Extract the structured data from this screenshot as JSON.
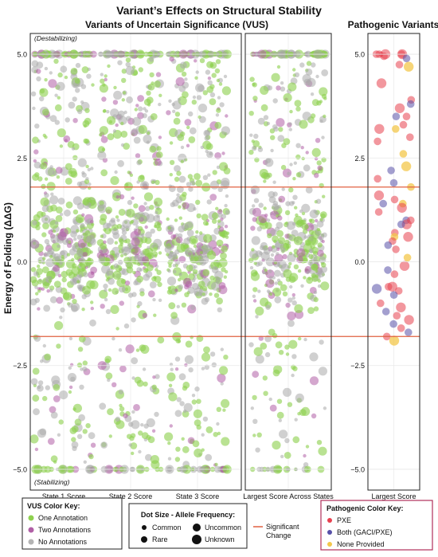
{
  "chart_data": {
    "type": "scatter",
    "title": "Variant’s Effects on Structural Stability",
    "ylabel": "Energy of Folding (ΔΔG)",
    "ylim": [
      -5.5,
      5.5
    ],
    "yticks": [
      {
        "value": 5.0,
        "label": "5.0"
      },
      {
        "value": 2.5,
        "label": "2.5"
      },
      {
        "value": 0.0,
        "label": "0.0"
      },
      {
        "value": -2.5,
        "label": "−2.5"
      },
      {
        "value": -5.0,
        "label": "−5.0"
      }
    ],
    "significance_lines": [
      1.8,
      -1.8
    ],
    "annotations": {
      "top": "(Destabilizing)",
      "bottom": "(Stabilizing)"
    },
    "vus_panel": {
      "title": "Variants of Uncertain Significance (VUS)",
      "categories": [
        "State 1 Score",
        "State 2 Score",
        "State 3 Score"
      ],
      "combined_category": "Largest Score Across States"
    },
    "pathogenic_panel": {
      "title": "Pathogenic Variants",
      "category": "Largest Score",
      "points": [
        {
          "y": 5.0,
          "g": "PXE",
          "s": 2
        },
        {
          "y": 5.0,
          "g": "PXE",
          "s": 3
        },
        {
          "y": 5.0,
          "g": "PXE",
          "s": 2
        },
        {
          "y": 5.0,
          "g": "PXE",
          "s": 1
        },
        {
          "y": 5.0,
          "g": "PXE",
          "s": 2
        },
        {
          "y": 5.0,
          "g": "PXE",
          "s": 3
        },
        {
          "y": 4.9,
          "g": "Both",
          "s": 2
        },
        {
          "y": 4.95,
          "g": "PXE",
          "s": 2
        },
        {
          "y": 4.7,
          "g": "None",
          "s": 3
        },
        {
          "y": 4.75,
          "g": "PXE",
          "s": 2
        },
        {
          "y": 4.3,
          "g": "PXE",
          "s": 3
        },
        {
          "y": 3.9,
          "g": "PXE",
          "s": 2
        },
        {
          "y": 3.8,
          "g": "Both",
          "s": 2
        },
        {
          "y": 3.7,
          "g": "PXE",
          "s": 3
        },
        {
          "y": 3.5,
          "g": "PXE",
          "s": 2
        },
        {
          "y": 3.5,
          "g": "Both",
          "s": 2
        },
        {
          "y": 3.3,
          "g": "PXE",
          "s": 2
        },
        {
          "y": 3.2,
          "g": "None",
          "s": 2
        },
        {
          "y": 3.2,
          "g": "PXE",
          "s": 3
        },
        {
          "y": 3.0,
          "g": "PXE",
          "s": 2
        },
        {
          "y": 2.9,
          "g": "PXE",
          "s": 2
        },
        {
          "y": 2.6,
          "g": "None",
          "s": 2
        },
        {
          "y": 2.3,
          "g": "None",
          "s": 3
        },
        {
          "y": 2.2,
          "g": "Both",
          "s": 2
        },
        {
          "y": 2.0,
          "g": "PXE",
          "s": 2
        },
        {
          "y": 1.9,
          "g": "Both",
          "s": 2
        },
        {
          "y": 1.8,
          "g": "None",
          "s": 2
        },
        {
          "y": 1.6,
          "g": "PXE",
          "s": 3
        },
        {
          "y": 1.5,
          "g": "PXE",
          "s": 2
        },
        {
          "y": 1.4,
          "g": "None",
          "s": 2
        },
        {
          "y": 1.4,
          "g": "Both",
          "s": 2
        },
        {
          "y": 1.3,
          "g": "PXE",
          "s": 3
        },
        {
          "y": 1.2,
          "g": "PXE",
          "s": 2
        },
        {
          "y": 1.0,
          "g": "Both",
          "s": 2
        },
        {
          "y": 1.0,
          "g": "PXE",
          "s": 2
        },
        {
          "y": 0.9,
          "g": "PXE",
          "s": 3
        },
        {
          "y": 0.9,
          "g": "Both",
          "s": 2
        },
        {
          "y": 0.7,
          "g": "PXE",
          "s": 2
        },
        {
          "y": 0.6,
          "g": "PXE",
          "s": 3
        },
        {
          "y": 0.6,
          "g": "None",
          "s": 2
        },
        {
          "y": 0.5,
          "g": "PXE",
          "s": 2
        },
        {
          "y": 0.4,
          "g": "Both",
          "s": 2
        },
        {
          "y": 0.3,
          "g": "PXE",
          "s": 2
        },
        {
          "y": 0.1,
          "g": "None",
          "s": 2
        },
        {
          "y": -0.1,
          "g": "PXE",
          "s": 3
        },
        {
          "y": -0.2,
          "g": "Both",
          "s": 2
        },
        {
          "y": -0.3,
          "g": "PXE",
          "s": 2
        },
        {
          "y": -0.6,
          "g": "PXE",
          "s": 3
        },
        {
          "y": -0.6,
          "g": "PXE",
          "s": 2
        },
        {
          "y": -0.65,
          "g": "Both",
          "s": 3
        },
        {
          "y": -0.7,
          "g": "PXE",
          "s": 2
        },
        {
          "y": -0.8,
          "g": "Both",
          "s": 2
        },
        {
          "y": -1.0,
          "g": "PXE",
          "s": 2
        },
        {
          "y": -1.1,
          "g": "PXE",
          "s": 3
        },
        {
          "y": -1.2,
          "g": "Both",
          "s": 2
        },
        {
          "y": -1.3,
          "g": "PXE",
          "s": 2
        },
        {
          "y": -1.4,
          "g": "PXE",
          "s": 3
        },
        {
          "y": -1.5,
          "g": "Both",
          "s": 2
        },
        {
          "y": -1.6,
          "g": "PXE",
          "s": 2
        },
        {
          "y": -1.8,
          "g": "PXE",
          "s": 2
        },
        {
          "y": -1.9,
          "g": "None",
          "s": 3
        },
        {
          "y": -1.7,
          "g": "Both",
          "s": 2
        }
      ]
    },
    "vus_color_key": {
      "title": "VUS Color Key:",
      "items": [
        {
          "label": "One Annotation",
          "color": "#8ed14f"
        },
        {
          "label": "Two Annotations",
          "color": "#b05fa6"
        },
        {
          "label": "No Annotations",
          "color": "#b4b4b4"
        }
      ]
    },
    "size_key": {
      "title": "Dot Size - Allele Frequency:",
      "items": [
        {
          "label": "Common",
          "size": 1
        },
        {
          "label": "Uncommon",
          "size": 3
        },
        {
          "label": "Rare",
          "size": 2
        },
        {
          "label": "Unknown",
          "size": 4
        }
      ]
    },
    "line_key": {
      "label_line1": "Significant",
      "label_line2": "Change",
      "color": "#e06040"
    },
    "pathogenic_color_key": {
      "title": "Pathogenic Color Key:",
      "items": [
        {
          "label": "PXE",
          "color": "#e8414f"
        },
        {
          "label": "Both (GACI/PXE)",
          "color": "#5750a8"
        },
        {
          "label": "None Provided",
          "color": "#f3c74b"
        }
      ]
    }
  }
}
